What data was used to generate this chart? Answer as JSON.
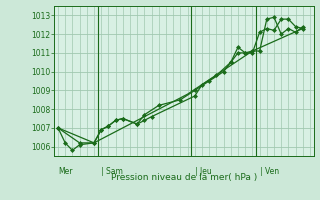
{
  "background_color": "#cce8d8",
  "plot_bg_color": "#d8f0e4",
  "grid_color": "#a0c8b0",
  "line_color": "#1a6b1a",
  "marker_color": "#1a6b1a",
  "title": "Pression niveau de la mer( hPa )",
  "ylim": [
    1005.5,
    1013.5
  ],
  "yticks": [
    1006,
    1007,
    1008,
    1009,
    1010,
    1011,
    1012,
    1013
  ],
  "day_labels": [
    "Mer",
    "Sam",
    "Jeu",
    "Ven"
  ],
  "day_positions": [
    0,
    6,
    19,
    28
  ],
  "vline_positions": [
    5.5,
    18.5,
    27.5
  ],
  "xlim": [
    -0.5,
    35.5
  ],
  "series1_x": [
    0,
    1,
    2,
    3,
    5,
    6,
    7,
    8,
    9,
    11,
    12,
    13,
    19,
    20,
    22,
    24,
    25,
    26,
    27,
    28,
    29,
    30,
    31,
    32,
    33,
    34
  ],
  "series1_y": [
    1007.0,
    1006.2,
    1005.8,
    1006.1,
    1006.2,
    1006.9,
    1007.1,
    1007.4,
    1007.5,
    1007.2,
    1007.4,
    1007.6,
    1008.7,
    1009.3,
    1009.8,
    1010.5,
    1011.3,
    1011.0,
    1011.0,
    1012.1,
    1012.3,
    1012.2,
    1012.8,
    1012.8,
    1012.4,
    1012.3
  ],
  "series2_x": [
    0,
    3,
    5,
    6,
    7,
    8,
    9,
    11,
    12,
    14,
    17,
    19,
    21,
    23,
    24,
    25,
    26,
    27,
    28,
    29,
    30,
    31,
    32,
    33,
    34
  ],
  "series2_y": [
    1007.0,
    1006.2,
    1006.2,
    1006.9,
    1007.1,
    1007.4,
    1007.5,
    1007.2,
    1007.7,
    1008.2,
    1008.5,
    1009.0,
    1009.5,
    1010.0,
    1010.5,
    1011.0,
    1011.0,
    1011.1,
    1011.1,
    1012.8,
    1012.9,
    1012.0,
    1012.3,
    1012.1,
    1012.4
  ],
  "series3_x": [
    0,
    5,
    18,
    27,
    34
  ],
  "series3_y": [
    1007.0,
    1006.2,
    1008.8,
    1011.1,
    1012.3
  ],
  "total_points": 35
}
